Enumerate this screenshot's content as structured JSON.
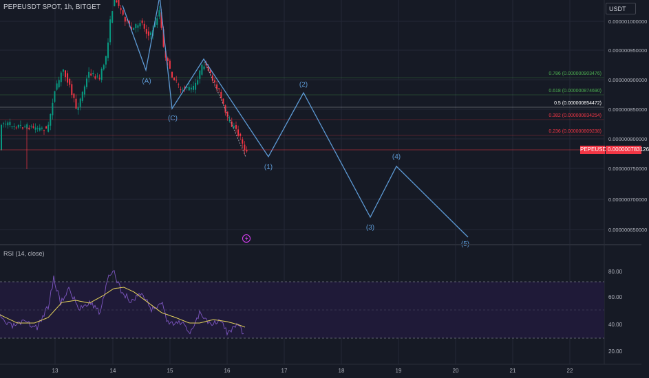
{
  "header": {
    "symbol_title": "PEPEUSDT SPOT, 1h, BITGET",
    "currency": "USDT"
  },
  "price_axis": {
    "labels": [
      "0.000001000000",
      "0.000000950000",
      "0.000000900000",
      "0.000000850000",
      "0.000000800000",
      "0.000000750000",
      "0.000000700000",
      "0.000000650000"
    ],
    "current_symbol": "PEPEUSDT",
    "current_price": "0.000000783126",
    "colors": {
      "up": "#089981",
      "down": "#f23645",
      "wave": "#5d9ad5"
    }
  },
  "fib_levels": [
    {
      "label": "0.786 (0.000000903476)",
      "color": "#4caf50"
    },
    {
      "label": "0.618 (0.000000874690)",
      "color": "#4caf50"
    },
    {
      "label": "0.5 (0.000000854472)",
      "color": "#ffffff"
    },
    {
      "label": "0.382 (0.000000834254)",
      "color": "#f23645"
    },
    {
      "label": "0.236 (0.000000809238)",
      "color": "#f23645"
    }
  ],
  "wave_labels": [
    "(A)",
    "(C)",
    "(1)",
    "(2)",
    "(3)",
    "(4)",
    "(5)"
  ],
  "rsi": {
    "title": "RSI (14, close)",
    "axis_labels": [
      "80.00",
      "60.00",
      "40.00",
      "20.00"
    ]
  },
  "time_axis": {
    "labels": [
      "13",
      "14",
      "15",
      "16",
      "17",
      "18",
      "19",
      "20",
      "21",
      "22"
    ]
  }
}
